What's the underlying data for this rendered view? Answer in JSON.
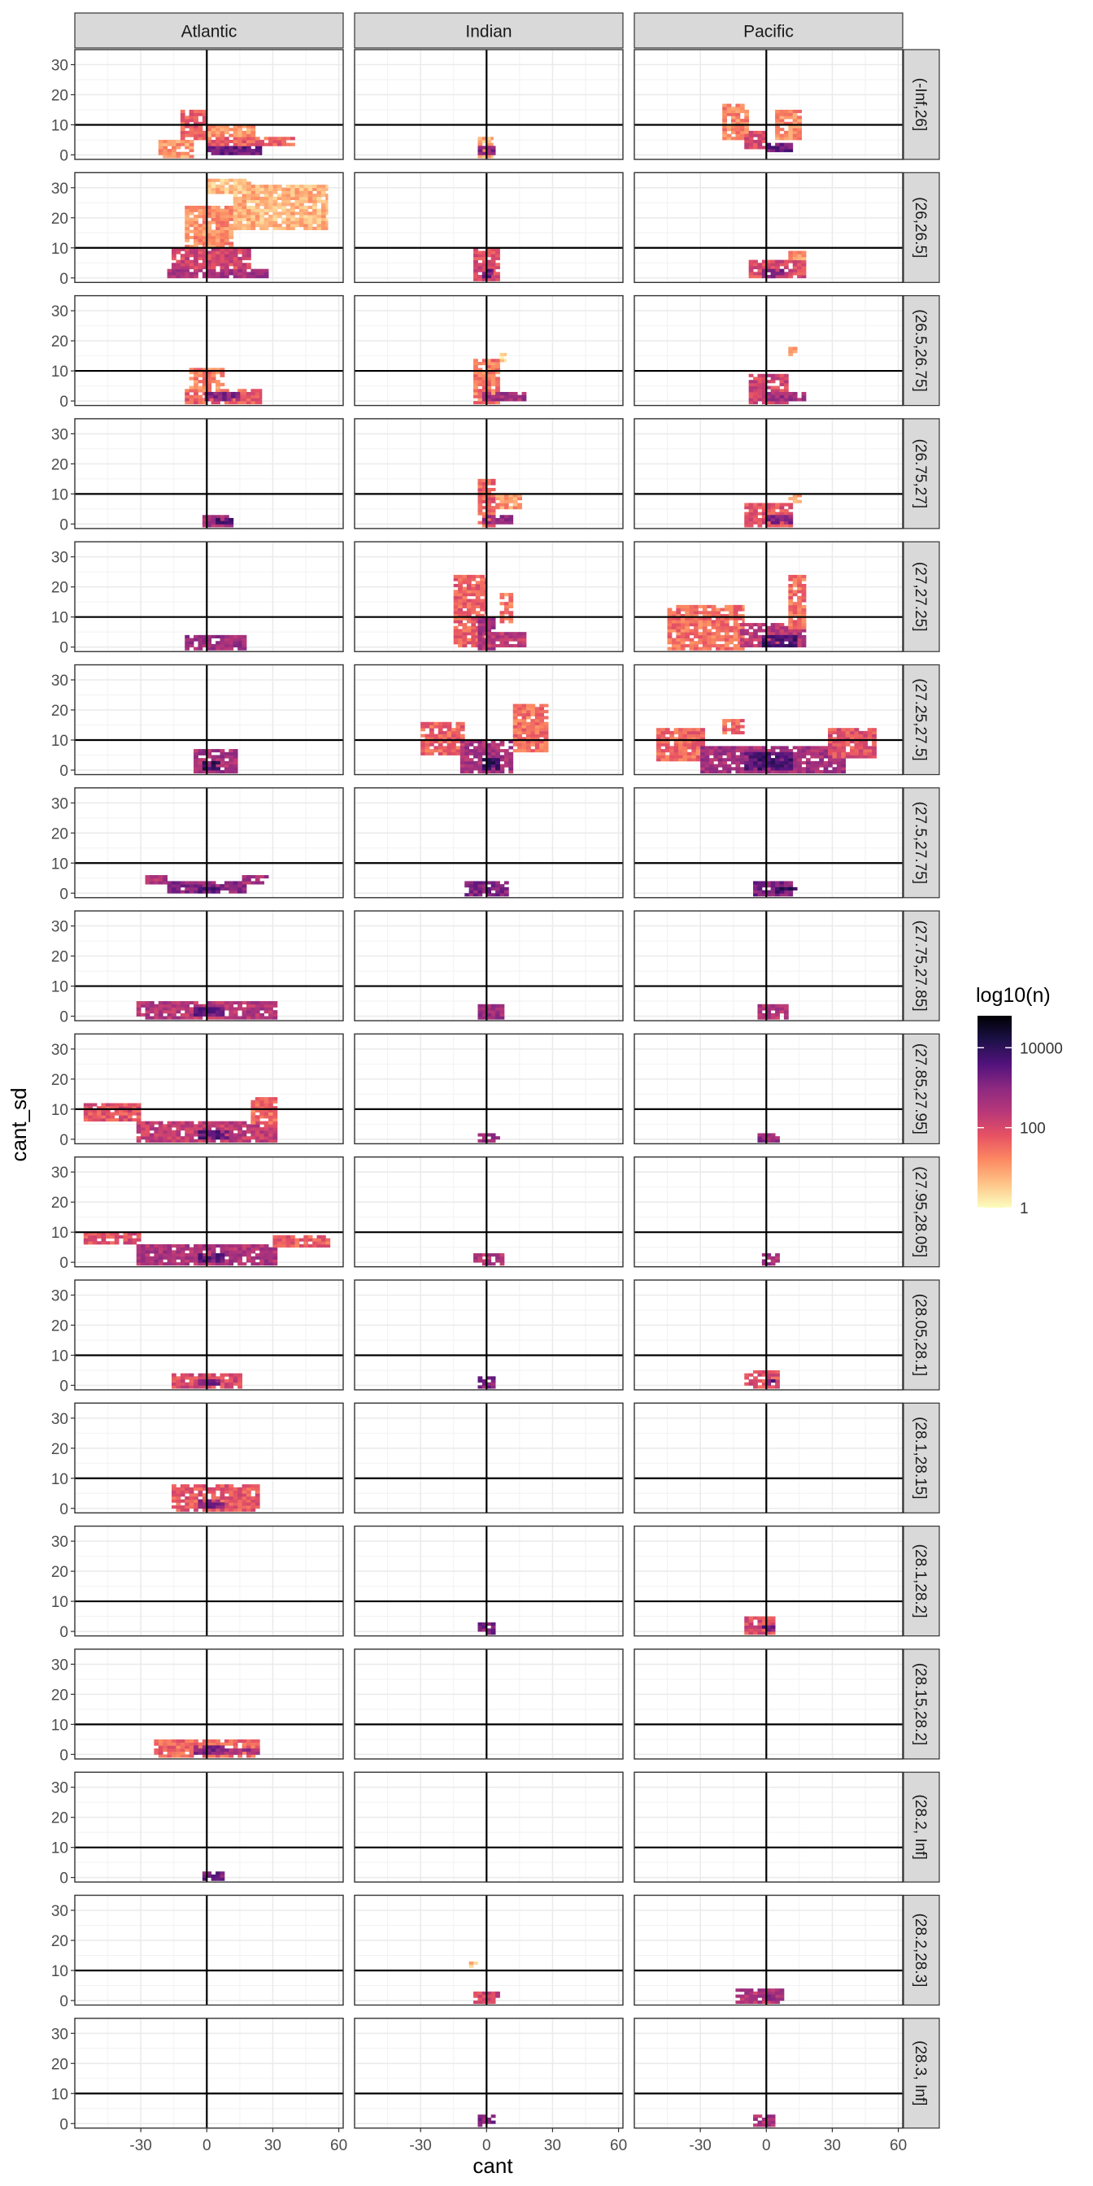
{
  "chart_data": {
    "type": "heatmap",
    "description_free": true,
    "xlabel": "cant",
    "ylabel": "cant_sd",
    "xlim": [
      -60,
      62
    ],
    "ylim": [
      -1.5,
      35
    ],
    "x_ticks": [
      -30,
      0,
      30,
      60
    ],
    "y_ticks": [
      0,
      10,
      20,
      30
    ],
    "x_tick_labels": [
      "-30",
      "0",
      "30",
      "60"
    ],
    "y_tick_labels": [
      "0",
      "10",
      "20",
      "30"
    ],
    "reference_lines": {
      "vline_x": 0,
      "hline_y": 10
    },
    "bin_width": 2,
    "col_facets": [
      "Atlantic",
      "Indian",
      "Pacific"
    ],
    "row_facets": [
      "(-Inf,26]",
      "(26,26.5]",
      "(26.5,26.75]",
      "(26.75,27]",
      "(27,27.25]",
      "(27.25,27.5]",
      "(27.5,27.75]",
      "(27.75,27.85]",
      "(27.85,27.95]",
      "(27.95,28.05]",
      "(28.05,28.1]",
      "(28.1,28.15]",
      "(28.1,28.2]",
      "(28.15,28.2]",
      "(28.2, Inf]",
      "(28.2,28.3]",
      "(28.3, Inf]"
    ],
    "legend": {
      "title": "log10(n)",
      "labels": [
        "10000",
        "100",
        "1"
      ],
      "label_values": [
        4,
        2,
        0
      ],
      "range": [
        0,
        4.8
      ],
      "colors": [
        "#fcfdbf",
        "#fec488",
        "#fc8961",
        "#e75263",
        "#b73779",
        "#8c2981",
        "#51127c",
        "#1d1147",
        "#000004"
      ],
      "placement": "right"
    },
    "panels": [
      [
        {
          "s": [
            [
              -22,
              -6,
              -1,
              5,
              1.0
            ],
            [
              -12,
              0,
              5,
              15,
              1.6
            ],
            [
              0,
              25,
              0,
              3,
              3.3
            ],
            [
              0,
              40,
              3,
              6,
              1.6
            ],
            [
              0,
              22,
              6,
              10,
              1.0
            ]
          ]
        },
        {
          "s": [
            [
              -4,
              3,
              -1,
              6,
              0.8
            ],
            [
              -4,
              4,
              0,
              3,
              2.9
            ]
          ]
        },
        {
          "s": [
            [
              -20,
              -8,
              5,
              17,
              1.2
            ],
            [
              -10,
              0,
              2,
              8,
              1.9
            ],
            [
              0,
              12,
              1,
              4,
              3.3
            ],
            [
              4,
              16,
              5,
              15,
              1.1
            ]
          ]
        }
      ],
      [
        {
          "s": [
            [
              -18,
              28,
              0,
              3,
              2.6
            ],
            [
              -16,
              20,
              3,
              10,
              2.0
            ],
            [
              -10,
              12,
              10,
              24,
              1.1
            ],
            [
              12,
              55,
              16,
              31,
              0.7
            ],
            [
              0,
              20,
              28,
              33,
              0.6
            ]
          ]
        },
        {
          "s": [
            [
              -6,
              6,
              -1,
              10,
              1.9
            ],
            [
              -2,
              3,
              0,
              3,
              3.2
            ]
          ]
        },
        {
          "s": [
            [
              -8,
              18,
              0,
              6,
              1.9
            ],
            [
              -2,
              8,
              0,
              3,
              3.0
            ],
            [
              10,
              18,
              6,
              9,
              1.0
            ]
          ]
        }
      ],
      [
        {
          "s": [
            [
              -10,
              25,
              -1,
              4,
              1.6
            ],
            [
              -8,
              8,
              3,
              11,
              1.2
            ],
            [
              -1,
              15,
              0,
              3,
              3.0
            ]
          ]
        },
        {
          "s": [
            [
              -6,
              6,
              -1,
              14,
              1.3
            ],
            [
              -2,
              18,
              0,
              3,
              2.6
            ],
            [
              6,
              9,
              13,
              16,
              0.4
            ]
          ]
        },
        {
          "s": [
            [
              -8,
              10,
              -1,
              9,
              2.0
            ],
            [
              0,
              18,
              0,
              3,
              2.7
            ],
            [
              10,
              14,
              15,
              19,
              0.9
            ]
          ]
        }
      ],
      [
        {
          "s": [
            [
              -2,
              12,
              -1,
              3,
              2.6
            ],
            [
              4,
              12,
              0,
              2,
              3.6
            ]
          ]
        },
        {
          "s": [
            [
              -4,
              4,
              -1,
              15,
              1.6
            ],
            [
              -2,
              12,
              0,
              3,
              2.8
            ],
            [
              4,
              16,
              5,
              10,
              1.0
            ]
          ]
        },
        {
          "s": [
            [
              -10,
              12,
              -1,
              7,
              1.8
            ],
            [
              0,
              12,
              0,
              3,
              2.9
            ],
            [
              10,
              16,
              7,
              10,
              1.0
            ]
          ]
        }
      ],
      [
        {
          "s": [
            [
              -10,
              18,
              -1,
              4,
              2.7
            ]
          ]
        },
        {
          "s": [
            [
              -15,
              0,
              0,
              24,
              1.6
            ],
            [
              -4,
              4,
              -1,
              10,
              2.6
            ],
            [
              0,
              18,
              0,
              5,
              2.3
            ],
            [
              6,
              12,
              8,
              18,
              1.3
            ]
          ]
        },
        {
          "s": [
            [
              -45,
              -10,
              -1,
              14,
              1.4
            ],
            [
              -12,
              18,
              0,
              8,
              2.3
            ],
            [
              10,
              18,
              6,
              24,
              1.4
            ],
            [
              -2,
              14,
              0,
              4,
              3.6
            ]
          ]
        }
      ],
      [
        {
          "s": [
            [
              -6,
              14,
              -1,
              7,
              2.6
            ],
            [
              -2,
              6,
              0,
              3,
              3.8
            ]
          ]
        },
        {
          "s": [
            [
              -30,
              -10,
              5,
              16,
              1.6
            ],
            [
              -12,
              12,
              -1,
              10,
              2.6
            ],
            [
              12,
              28,
              6,
              22,
              1.4
            ],
            [
              -2,
              6,
              0,
              4,
              3.8
            ]
          ]
        },
        {
          "s": [
            [
              -50,
              -28,
              3,
              14,
              1.5
            ],
            [
              -30,
              36,
              -1,
              8,
              2.6
            ],
            [
              28,
              50,
              4,
              14,
              1.8
            ],
            [
              -10,
              12,
              0,
              6,
              3.6
            ],
            [
              -20,
              -10,
              12,
              17,
              1.5
            ]
          ]
        }
      ],
      [
        {
          "s": [
            [
              -28,
              -16,
              3,
              6,
              2.5
            ],
            [
              -18,
              18,
              0,
              4,
              2.9
            ],
            [
              16,
              28,
              3,
              6,
              2.6
            ],
            [
              -4,
              6,
              0,
              2,
              3.4
            ]
          ]
        },
        {
          "s": [
            [
              -10,
              10,
              -1,
              4,
              3.0
            ]
          ]
        },
        {
          "s": [
            [
              -6,
              12,
              -1,
              4,
              3.1
            ],
            [
              4,
              14,
              0,
              2,
              3.8
            ]
          ]
        }
      ],
      [
        {
          "s": [
            [
              -32,
              32,
              -1,
              5,
              2.4
            ],
            [
              -6,
              8,
              0,
              3,
              3.3
            ]
          ]
        },
        {
          "s": [
            [
              -4,
              8,
              -1,
              4,
              2.7
            ]
          ]
        },
        {
          "s": [
            [
              -4,
              10,
              -1,
              4,
              2.4
            ]
          ]
        }
      ],
      [
        {
          "s": [
            [
              -56,
              -30,
              6,
              12,
              1.8
            ],
            [
              -32,
              32,
              -1,
              6,
              2.2
            ],
            [
              20,
              32,
              5,
              14,
              1.4
            ],
            [
              -4,
              10,
              0,
              3,
              3.5
            ]
          ]
        },
        {
          "s": [
            [
              -4,
              6,
              -1,
              2,
              2.8
            ]
          ]
        },
        {
          "s": [
            [
              -4,
              6,
              -1,
              2,
              2.8
            ]
          ]
        }
      ],
      [
        {
          "s": [
            [
              -56,
              -30,
              6,
              10,
              1.8
            ],
            [
              -32,
              32,
              -1,
              6,
              2.5
            ],
            [
              30,
              56,
              5,
              9,
              1.6
            ],
            [
              -4,
              8,
              0,
              3,
              3.3
            ]
          ]
        },
        {
          "s": [
            [
              -6,
              8,
              -1,
              3,
              2.4
            ]
          ]
        },
        {
          "s": [
            [
              -2,
              6,
              -1,
              3,
              2.6
            ]
          ]
        }
      ],
      [
        {
          "s": [
            [
              -16,
              16,
              -1,
              4,
              1.9
            ],
            [
              -4,
              6,
              0,
              2,
              3.2
            ]
          ]
        },
        {
          "s": [
            [
              -4,
              4,
              -1,
              3,
              3.0
            ]
          ]
        },
        {
          "s": [
            [
              -10,
              6,
              -1,
              5,
              1.8
            ],
            [
              0,
              4,
              0,
              2,
              3.3
            ]
          ]
        }
      ],
      [
        {
          "s": [
            [
              -16,
              24,
              -1,
              8,
              1.7
            ],
            [
              -4,
              8,
              0,
              3,
              3.0
            ]
          ]
        },
        {
          "s": []
        },
        {
          "s": []
        }
      ],
      [
        {
          "s": []
        },
        {
          "s": [
            {
              "x0": -4,
              "x1": 4,
              "y0": -1,
              "y1": 3,
              "v": 3.0
            }
          ]
        },
        {
          "s": [
            [
              -10,
              4,
              -1,
              5,
              1.9
            ],
            [
              -2,
              4,
              0,
              2,
              3.2
            ]
          ]
        }
      ],
      [
        {
          "s": [
            [
              -24,
              24,
              -1,
              5,
              1.5
            ],
            [
              -6,
              8,
              0,
              3,
              3.0
            ],
            [
              4,
              24,
              0,
              2,
              2.6
            ]
          ]
        },
        {
          "s": []
        },
        {
          "s": []
        }
      ],
      [
        {
          "s": [
            [
              -2,
              8,
              -1,
              2,
              3.2
            ]
          ]
        },
        {
          "s": []
        },
        {
          "s": []
        }
      ],
      [
        {
          "s": []
        },
        {
          "s": [
            [
              -6,
              6,
              -1,
              3,
              2.0
            ],
            [
              -8,
              -4,
              11,
              13,
              0.6
            ]
          ]
        },
        {
          "s": [
            [
              -14,
              8,
              -1,
              4,
              2.4
            ],
            [
              -2,
              4,
              0,
              2,
              3.2
            ]
          ]
        }
      ],
      [
        {
          "s": []
        },
        {
          "s": [
            [
              -4,
              4,
              -1,
              3,
              3.0
            ]
          ]
        },
        {
          "s": [
            [
              -6,
              4,
              -1,
              3,
              2.6
            ]
          ]
        }
      ]
    ]
  }
}
